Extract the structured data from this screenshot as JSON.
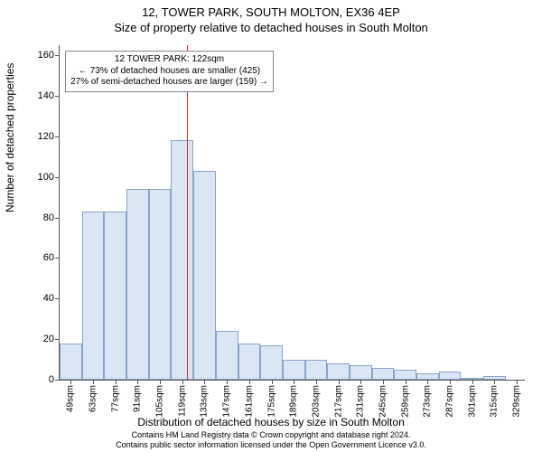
{
  "titles": {
    "line1": "12, TOWER PARK, SOUTH MOLTON, EX36 4EP",
    "line2": "Size of property relative to detached houses in South Molton"
  },
  "axes": {
    "ylabel": "Number of detached properties",
    "xlabel": "Distribution of detached houses by size in South Molton",
    "ylim": [
      0,
      165
    ],
    "ytick_step": 20,
    "ytick_max": 160,
    "xlim": [
      42,
      334
    ],
    "xtick_start": 49,
    "xtick_step": 14,
    "xtick_count": 21,
    "xtick_suffix": "sqm"
  },
  "chart": {
    "type": "histogram",
    "bar_width_sqm": 14,
    "bars": [
      {
        "x": 42,
        "y": 18
      },
      {
        "x": 56,
        "y": 83
      },
      {
        "x": 70,
        "y": 83
      },
      {
        "x": 84,
        "y": 94
      },
      {
        "x": 98,
        "y": 94
      },
      {
        "x": 112,
        "y": 118
      },
      {
        "x": 126,
        "y": 103
      },
      {
        "x": 140,
        "y": 24
      },
      {
        "x": 154,
        "y": 18
      },
      {
        "x": 168,
        "y": 17
      },
      {
        "x": 182,
        "y": 10
      },
      {
        "x": 196,
        "y": 10
      },
      {
        "x": 210,
        "y": 8
      },
      {
        "x": 224,
        "y": 7
      },
      {
        "x": 238,
        "y": 6
      },
      {
        "x": 252,
        "y": 5
      },
      {
        "x": 266,
        "y": 3
      },
      {
        "x": 280,
        "y": 4
      },
      {
        "x": 294,
        "y": 1
      },
      {
        "x": 308,
        "y": 2
      },
      {
        "x": 322,
        "y": 0
      }
    ],
    "bar_fill": "#dbe6f5",
    "bar_border": "#8aa4c8",
    "refline_x": 122,
    "refline_color": "#d03030",
    "background_color": "#ffffff"
  },
  "annotation": {
    "lines": [
      "12 TOWER PARK: 122sqm",
      "← 73% of detached houses are smaller (425)",
      "27% of semi-detached houses are larger (159) →"
    ]
  },
  "license": {
    "line1": "Contains HM Land Registry data © Crown copyright and database right 2024.",
    "line2": "Contains public sector information licensed under the Open Government Licence v3.0."
  },
  "typography": {
    "title_fontsize": 13,
    "axis_label_fontsize": 12,
    "tick_fontsize": 11,
    "xtick_fontsize": 10,
    "annotation_fontsize": 10,
    "license_fontsize": 9
  }
}
